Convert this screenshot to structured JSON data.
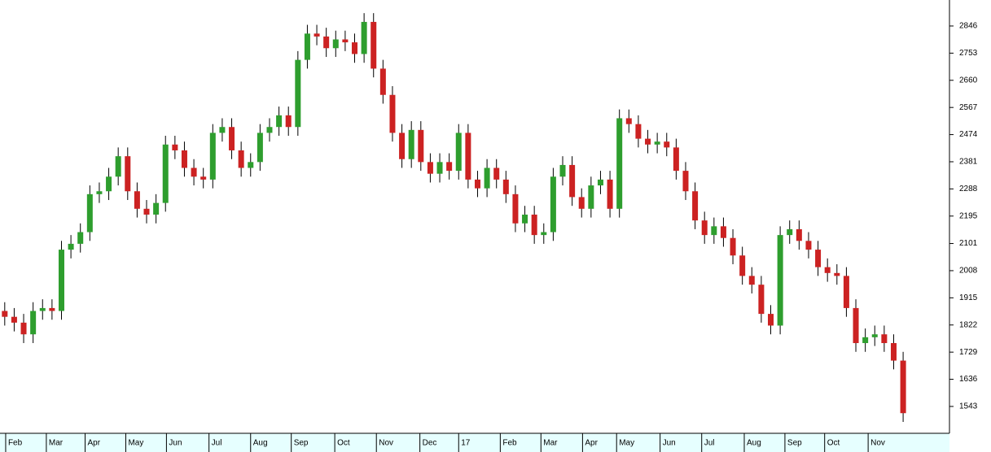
{
  "chart_data": {
    "type": "candlestick",
    "open": [
      1870,
      1850,
      1830,
      1790,
      1870,
      1880,
      1870,
      2080,
      2100,
      2140,
      2270,
      2280,
      2330,
      2400,
      2280,
      2220,
      2200,
      2240,
      2440,
      2420,
      2360,
      2330,
      2320,
      2480,
      2500,
      2420,
      2360,
      2380,
      2480,
      2500,
      2540,
      2500,
      2730,
      2820,
      2810,
      2770,
      2800,
      2790,
      2750,
      2860,
      2700,
      2610,
      2480,
      2390,
      2490,
      2380,
      2340,
      2380,
      2350,
      2480,
      2320,
      2290,
      2360,
      2320,
      2270,
      2170,
      2200,
      2130,
      2140,
      2330,
      2370,
      2260,
      2220,
      2300,
      2320,
      2220,
      2530,
      2510,
      2460,
      2440,
      2450,
      2430,
      2350,
      2280,
      2180,
      2130,
      2160,
      2120,
      2060,
      1990,
      1960,
      1860,
      1820,
      2130,
      2150,
      2110,
      2080,
      2020,
      2000,
      1990,
      1880,
      1760,
      1780,
      1790,
      1760,
      1700
    ],
    "high": [
      1900,
      1880,
      1860,
      1900,
      1910,
      1910,
      2110,
      2130,
      2170,
      2300,
      2310,
      2360,
      2430,
      2430,
      2310,
      2250,
      2270,
      2470,
      2470,
      2450,
      2390,
      2360,
      2510,
      2530,
      2530,
      2450,
      2410,
      2510,
      2530,
      2570,
      2570,
      2760,
      2850,
      2850,
      2840,
      2830,
      2830,
      2820,
      2890,
      2890,
      2730,
      2640,
      2510,
      2520,
      2520,
      2410,
      2410,
      2410,
      2510,
      2510,
      2350,
      2390,
      2390,
      2350,
      2300,
      2230,
      2230,
      2170,
      2360,
      2400,
      2400,
      2290,
      2330,
      2350,
      2350,
      2560,
      2560,
      2540,
      2490,
      2480,
      2480,
      2460,
      2380,
      2310,
      2210,
      2190,
      2190,
      2150,
      2090,
      2020,
      1990,
      1890,
      2160,
      2180,
      2180,
      2140,
      2110,
      2050,
      2030,
      2020,
      1910,
      1810,
      1820,
      1820,
      1790,
      1730
    ],
    "low": [
      1820,
      1800,
      1760,
      1760,
      1840,
      1840,
      1840,
      2050,
      2070,
      2110,
      2240,
      2250,
      2300,
      2250,
      2190,
      2170,
      2170,
      2210,
      2390,
      2330,
      2300,
      2290,
      2290,
      2450,
      2390,
      2330,
      2330,
      2350,
      2450,
      2470,
      2470,
      2470,
      2700,
      2780,
      2740,
      2740,
      2760,
      2720,
      2720,
      2670,
      2580,
      2450,
      2360,
      2360,
      2350,
      2310,
      2310,
      2320,
      2320,
      2290,
      2260,
      2260,
      2290,
      2240,
      2140,
      2140,
      2100,
      2100,
      2110,
      2300,
      2230,
      2190,
      2190,
      2270,
      2190,
      2190,
      2480,
      2430,
      2410,
      2410,
      2400,
      2320,
      2250,
      2150,
      2100,
      2100,
      2090,
      2030,
      1960,
      1930,
      1830,
      1790,
      1790,
      2100,
      2080,
      2050,
      1990,
      1970,
      1960,
      1850,
      1730,
      1730,
      1750,
      1730,
      1670,
      1490
    ],
    "close": [
      1850,
      1830,
      1790,
      1870,
      1880,
      1870,
      2080,
      2100,
      2140,
      2270,
      2280,
      2330,
      2400,
      2280,
      2220,
      2200,
      2240,
      2440,
      2420,
      2360,
      2330,
      2320,
      2480,
      2500,
      2420,
      2360,
      2380,
      2480,
      2500,
      2540,
      2500,
      2730,
      2820,
      2810,
      2770,
      2800,
      2790,
      2750,
      2860,
      2700,
      2610,
      2480,
      2390,
      2490,
      2380,
      2340,
      2380,
      2350,
      2480,
      2320,
      2290,
      2360,
      2320,
      2270,
      2170,
      2200,
      2130,
      2140,
      2330,
      2370,
      2260,
      2220,
      2300,
      2320,
      2220,
      2530,
      2510,
      2460,
      2440,
      2450,
      2430,
      2350,
      2280,
      2180,
      2130,
      2160,
      2120,
      2060,
      1990,
      1960,
      1860,
      1820,
      2130,
      2150,
      2110,
      2080,
      2020,
      2000,
      1990,
      1880,
      1760,
      1780,
      1790,
      1760,
      1700,
      1520
    ],
    "up_color": "#2e9e2e",
    "down_color": "#cc2222",
    "ylim": [
      1451,
      2935
    ],
    "yticks": [
      1543,
      1636,
      1729,
      1822,
      1915,
      2008,
      2101,
      2195,
      2288,
      2381,
      2474,
      2567,
      2660,
      2753,
      2846
    ],
    "xlim": [
      -0.5,
      99.9
    ],
    "xticks": [
      {
        "value": 0.1,
        "label": "Feb"
      },
      {
        "value": 4.4,
        "label": "Mar"
      },
      {
        "value": 8.5,
        "label": "Apr"
      },
      {
        "value": 12.8,
        "label": "May"
      },
      {
        "value": 17.1,
        "label": "Jun"
      },
      {
        "value": 21.6,
        "label": "Jul"
      },
      {
        "value": 26.0,
        "label": "Aug"
      },
      {
        "value": 30.3,
        "label": "Sep"
      },
      {
        "value": 34.9,
        "label": "Oct"
      },
      {
        "value": 39.3,
        "label": "Nov"
      },
      {
        "value": 43.9,
        "label": "Dec"
      },
      {
        "value": 48.0,
        "label": "17"
      },
      {
        "value": 52.4,
        "label": "Feb"
      },
      {
        "value": 56.7,
        "label": "Mar"
      },
      {
        "value": 61.1,
        "label": "Apr"
      },
      {
        "value": 64.7,
        "label": "May"
      },
      {
        "value": 69.3,
        "label": "Jun"
      },
      {
        "value": 73.7,
        "label": "Jul"
      },
      {
        "value": 78.2,
        "label": "Aug"
      },
      {
        "value": 82.5,
        "label": "Sep"
      },
      {
        "value": 86.7,
        "label": "Oct"
      },
      {
        "value": 91.3,
        "label": "Nov"
      }
    ]
  }
}
